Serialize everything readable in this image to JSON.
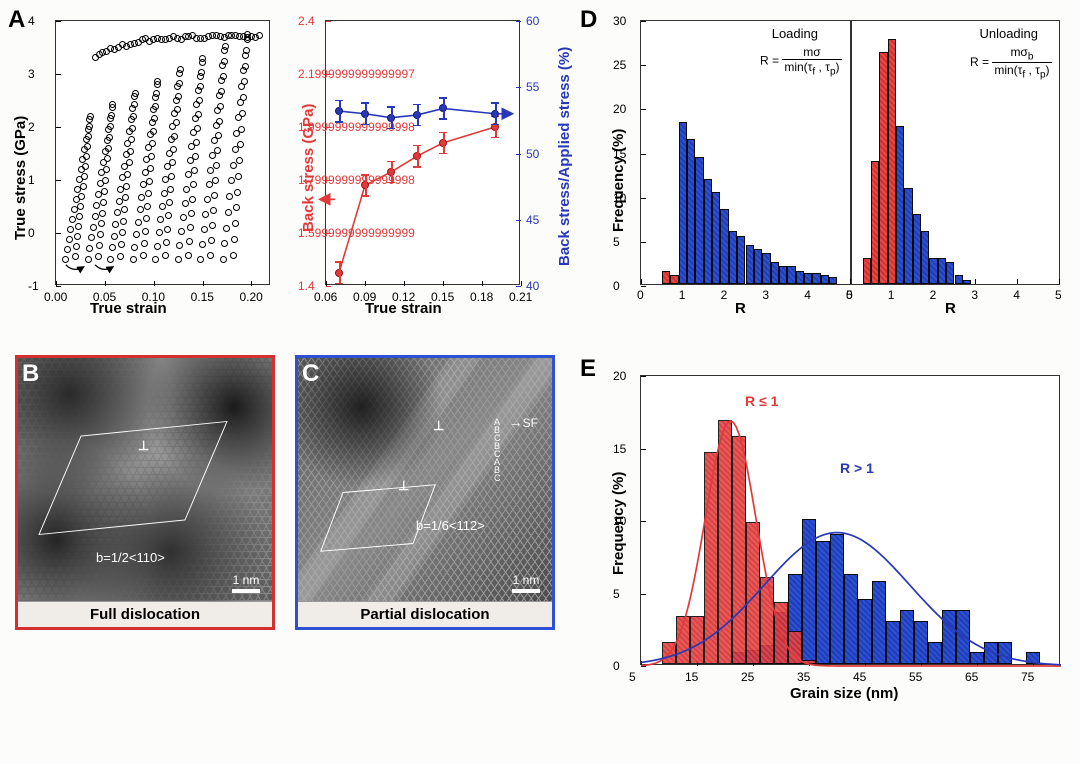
{
  "panels": {
    "A": "A",
    "B": "B",
    "C": "C",
    "D": "D",
    "E": "E"
  },
  "colors": {
    "blue": "#2838b8",
    "red": "#e23a3a",
    "black": "#000000",
    "bg": "#fcfcfa",
    "border_red": "#d43030",
    "border_blue": "#2d50d5"
  },
  "panelA_left": {
    "type": "scatter-loops",
    "xlabel": "True strain",
    "ylabel": "True stress (GPa)",
    "xlim": [
      0.0,
      0.22
    ],
    "xtick_step": 0.05,
    "ylim": [
      -1,
      4
    ],
    "ytick_step": 1,
    "marker_style": "open-circle",
    "cycles": 8
  },
  "panelA_right": {
    "xlabel": "True strain",
    "ylabel_left": "Back stress (GPa)",
    "ylabel_right": "Back stress/Applied stress (%)",
    "left_color": "#e23a3a",
    "right_color": "#2838b8",
    "xlim": [
      0.06,
      0.21
    ],
    "xtick_step": 0.03,
    "ylim_left": [
      1.4,
      2.4
    ],
    "ylim_right": [
      40,
      60
    ],
    "red_points": [
      [
        0.07,
        1.45
      ],
      [
        0.09,
        1.78
      ],
      [
        0.11,
        1.83
      ],
      [
        0.13,
        1.89
      ],
      [
        0.15,
        1.94
      ],
      [
        0.19,
        2.0
      ]
    ],
    "blue_points": [
      [
        0.07,
        53.2
      ],
      [
        0.09,
        53.0
      ],
      [
        0.11,
        52.7
      ],
      [
        0.13,
        52.9
      ],
      [
        0.15,
        53.4
      ],
      [
        0.19,
        53.0
      ]
    ],
    "red_err": 0.04,
    "blue_err": 0.8
  },
  "panelB": {
    "type": "HRTEM",
    "caption": "Full dislocation",
    "burgers": "b=1/2<110>",
    "scale": "1 nm",
    "border_color": "#d43030"
  },
  "panelC": {
    "type": "HRTEM",
    "caption": "Partial dislocation",
    "burgers": "b=1/6<112>",
    "sf_label": "SF",
    "stacking_label": "ABCBCABC",
    "scale": "1 nm",
    "border_color": "#2d50d5"
  },
  "panelD": {
    "type": "histogram",
    "xlabel": "R",
    "ylabel": "Frequency (%)",
    "xlim": [
      0,
      5
    ],
    "ylim": [
      0,
      30
    ],
    "loading_label": "Loading",
    "unloading_label": "Unloading",
    "formula_loading": "R = mσ / min(τf , τp)",
    "formula_unloading": "R = mσb / min(τf , τp)",
    "loading_bars": [
      {
        "x": 0.6,
        "y": 1.5,
        "c": "red"
      },
      {
        "x": 0.8,
        "y": 1.0,
        "c": "red"
      },
      {
        "x": 1.0,
        "y": 18.5,
        "c": "blue"
      },
      {
        "x": 1.2,
        "y": 16.5,
        "c": "blue"
      },
      {
        "x": 1.4,
        "y": 14.5,
        "c": "blue"
      },
      {
        "x": 1.6,
        "y": 12.0,
        "c": "blue"
      },
      {
        "x": 1.8,
        "y": 10.5,
        "c": "blue"
      },
      {
        "x": 2.0,
        "y": 8.5,
        "c": "blue"
      },
      {
        "x": 2.2,
        "y": 6.0,
        "c": "blue"
      },
      {
        "x": 2.4,
        "y": 5.5,
        "c": "blue"
      },
      {
        "x": 2.6,
        "y": 4.5,
        "c": "blue"
      },
      {
        "x": 2.8,
        "y": 4.0,
        "c": "blue"
      },
      {
        "x": 3.0,
        "y": 3.5,
        "c": "blue"
      },
      {
        "x": 3.2,
        "y": 2.5,
        "c": "blue"
      },
      {
        "x": 3.4,
        "y": 2.0,
        "c": "blue"
      },
      {
        "x": 3.6,
        "y": 2.0,
        "c": "blue"
      },
      {
        "x": 3.8,
        "y": 1.5,
        "c": "blue"
      },
      {
        "x": 4.0,
        "y": 1.2,
        "c": "blue"
      },
      {
        "x": 4.2,
        "y": 1.2,
        "c": "blue"
      },
      {
        "x": 4.4,
        "y": 1.0,
        "c": "blue"
      },
      {
        "x": 4.6,
        "y": 0.8,
        "c": "blue"
      }
    ],
    "unloading_bars": [
      {
        "x": 0.4,
        "y": 3.0,
        "c": "red"
      },
      {
        "x": 0.6,
        "y": 14.0,
        "c": "red"
      },
      {
        "x": 0.8,
        "y": 26.5,
        "c": "red"
      },
      {
        "x": 1.0,
        "y": 28.0,
        "c": "red"
      },
      {
        "x": 1.2,
        "y": 18.0,
        "c": "blue"
      },
      {
        "x": 1.4,
        "y": 11.0,
        "c": "blue"
      },
      {
        "x": 1.6,
        "y": 8.0,
        "c": "blue"
      },
      {
        "x": 1.8,
        "y": 6.0,
        "c": "blue"
      },
      {
        "x": 2.0,
        "y": 3.0,
        "c": "blue"
      },
      {
        "x": 2.2,
        "y": 3.0,
        "c": "blue"
      },
      {
        "x": 2.4,
        "y": 2.5,
        "c": "blue"
      },
      {
        "x": 2.6,
        "y": 1.0,
        "c": "blue"
      },
      {
        "x": 2.8,
        "y": 0.5,
        "c": "blue"
      }
    ],
    "bin_w": 0.2
  },
  "panelE": {
    "type": "histogram",
    "xlabel": "Grain size (nm)",
    "ylabel": "Frequency (%)",
    "xlim": [
      5,
      80
    ],
    "ylim": [
      0,
      20
    ],
    "legend_red": "R ≤ 1",
    "legend_blue": "R > 1",
    "red_bars": [
      {
        "x": 10,
        "y": 1.5
      },
      {
        "x": 12.5,
        "y": 3.3
      },
      {
        "x": 15,
        "y": 3.3
      },
      {
        "x": 17.5,
        "y": 14.6
      },
      {
        "x": 20,
        "y": 16.8
      },
      {
        "x": 22.5,
        "y": 15.7
      },
      {
        "x": 25,
        "y": 9.8
      },
      {
        "x": 27.5,
        "y": 6.0
      },
      {
        "x": 30,
        "y": 4.3
      },
      {
        "x": 32.5,
        "y": 2.3
      },
      {
        "x": 35,
        "y": 0.3
      }
    ],
    "blue_bars": [
      {
        "x": 22.5,
        "y": 0.8
      },
      {
        "x": 25,
        "y": 1.0
      },
      {
        "x": 27.5,
        "y": 1.3
      },
      {
        "x": 30,
        "y": 3.6
      },
      {
        "x": 32.5,
        "y": 6.2
      },
      {
        "x": 35,
        "y": 10.0
      },
      {
        "x": 37.5,
        "y": 8.5
      },
      {
        "x": 40,
        "y": 9.0
      },
      {
        "x": 42.5,
        "y": 6.2
      },
      {
        "x": 45,
        "y": 4.5
      },
      {
        "x": 47.5,
        "y": 5.7
      },
      {
        "x": 50,
        "y": 3.0
      },
      {
        "x": 52.5,
        "y": 3.7
      },
      {
        "x": 55,
        "y": 3.0
      },
      {
        "x": 57.5,
        "y": 1.5
      },
      {
        "x": 60,
        "y": 3.7
      },
      {
        "x": 62.5,
        "y": 3.7
      },
      {
        "x": 65,
        "y": 0.8
      },
      {
        "x": 67.5,
        "y": 1.5
      },
      {
        "x": 70,
        "y": 1.5
      },
      {
        "x": 75,
        "y": 0.8
      }
    ],
    "bin_w": 2.5
  }
}
